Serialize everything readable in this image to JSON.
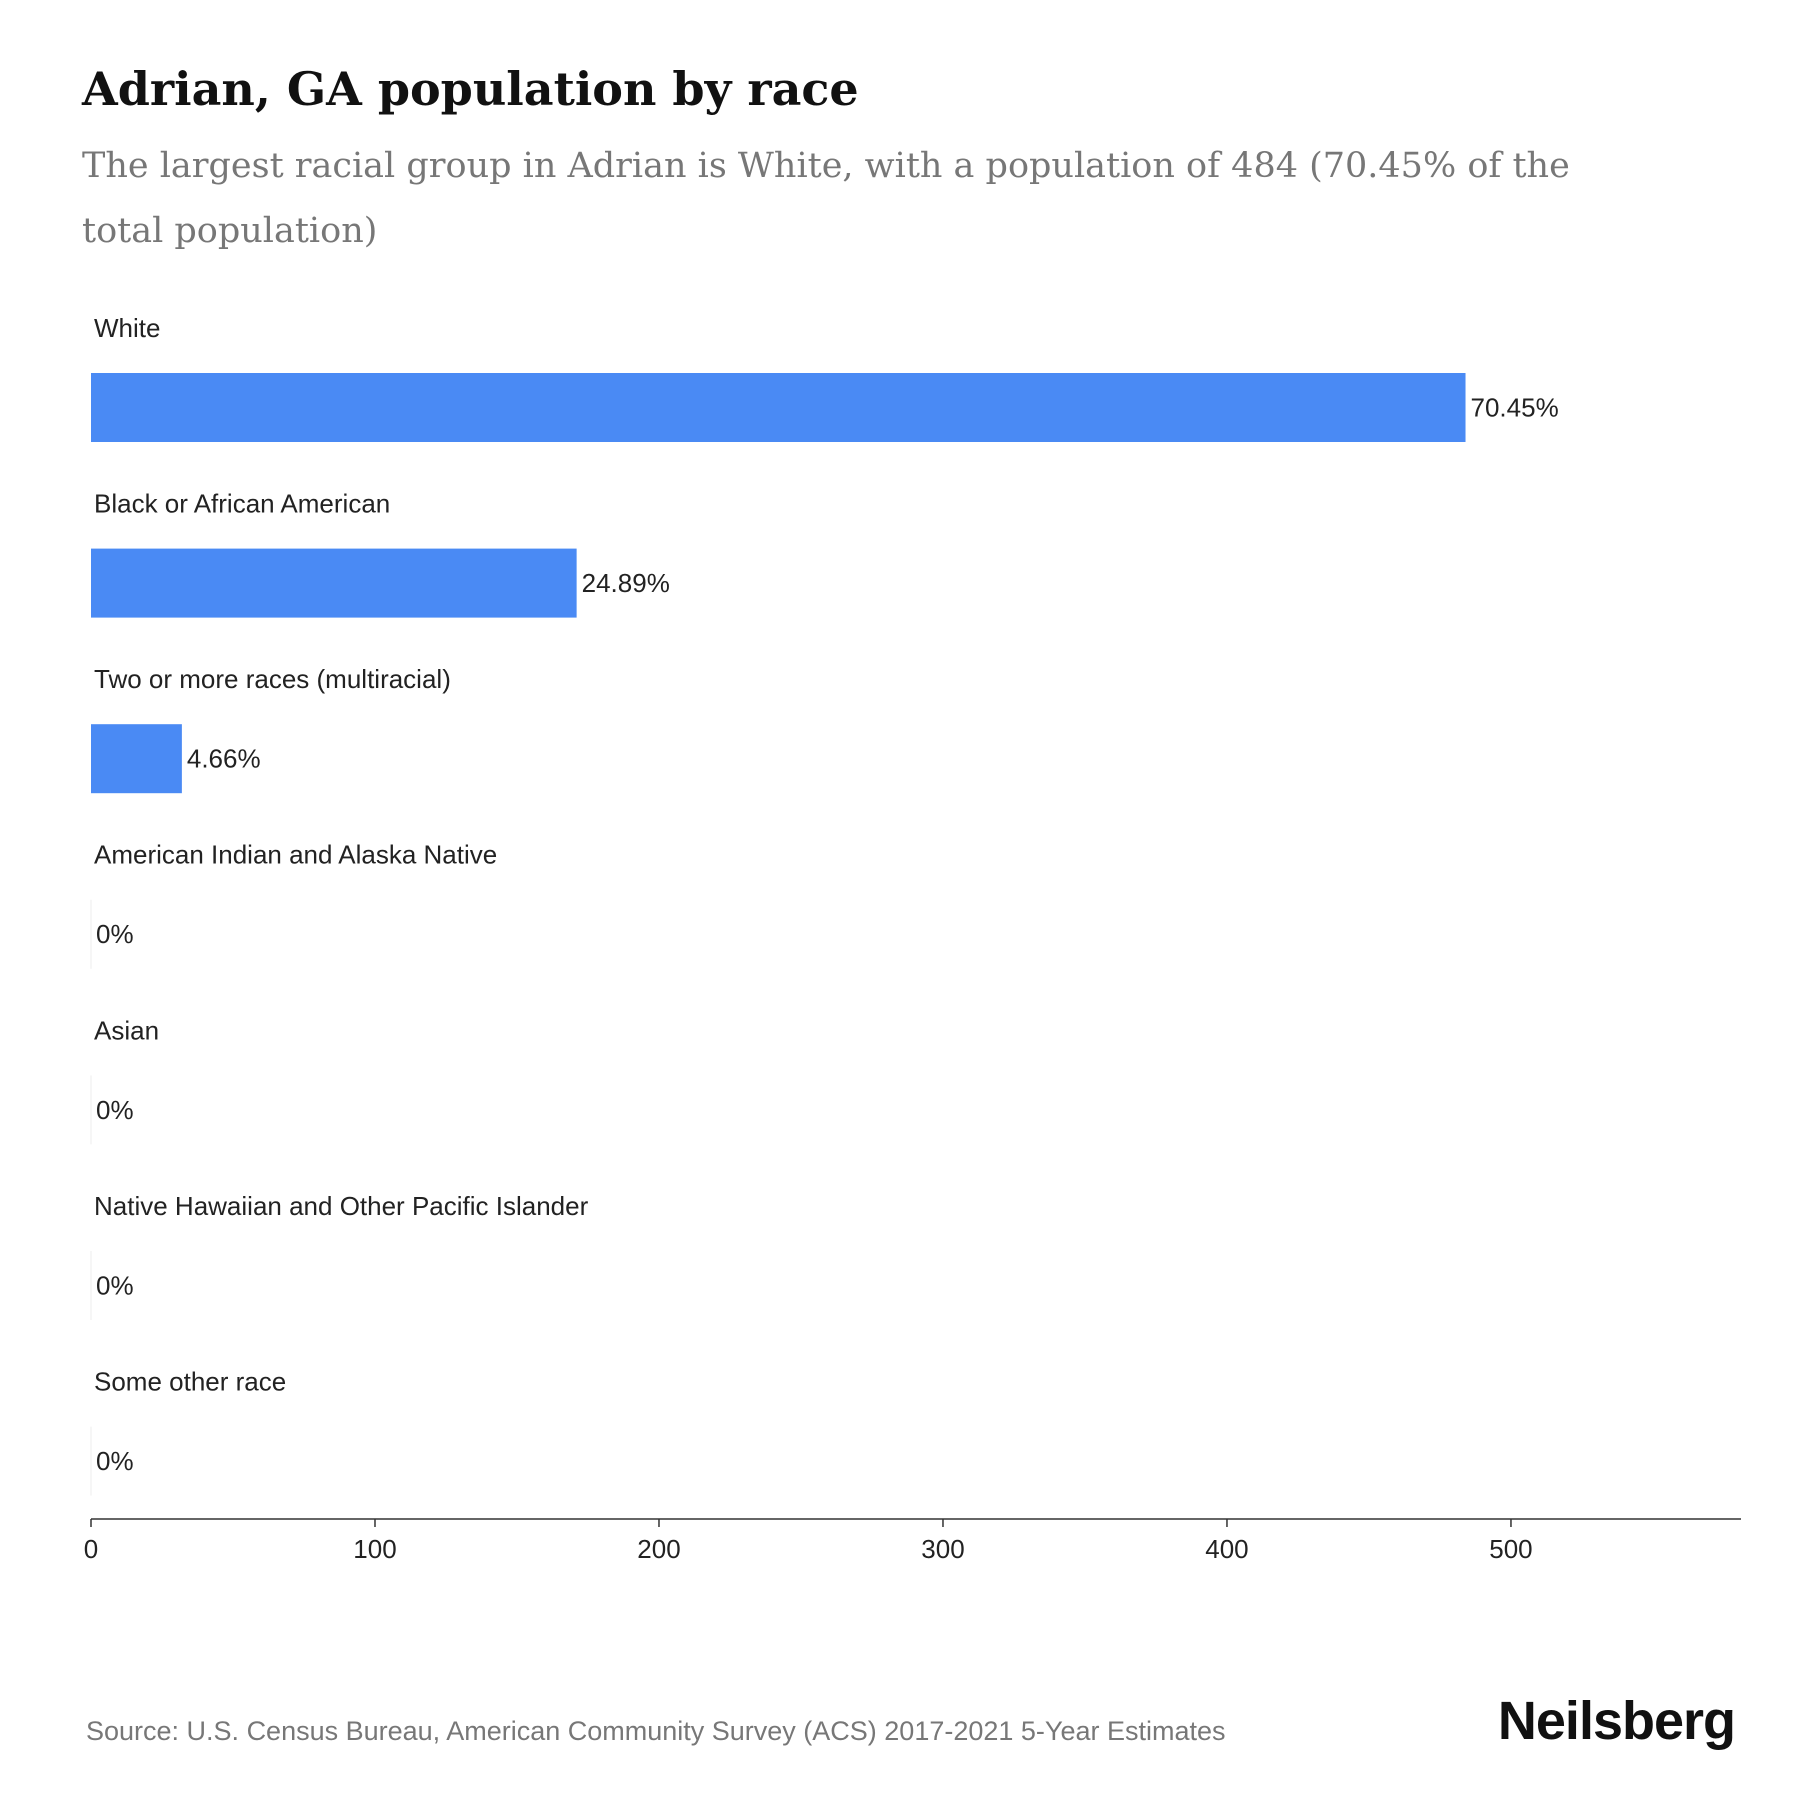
{
  "chart_data": {
    "type": "bar",
    "orientation": "horizontal",
    "title": "Adrian, GA population by race",
    "subtitle": "The largest racial group in Adrian is White, with a population of 484 (70.45% of the total population)",
    "categories": [
      "White",
      "Black or African American",
      "Two or more races (multiracial)",
      "American Indian and Alaska Native",
      "Asian",
      "Native Hawaiian and Other Pacific Islander",
      "Some other race"
    ],
    "values": [
      484,
      171,
      32,
      0,
      0,
      0,
      0
    ],
    "value_labels": [
      "70.45%",
      "24.89%",
      "4.66%",
      "0%",
      "0%",
      "0%",
      "0%"
    ],
    "color": "#4a8af4",
    "xlim": [
      0,
      581
    ],
    "xticks": [
      0,
      100,
      200,
      300,
      400,
      500
    ],
    "source": "Source: U.S. Census Bureau, American Community Survey (ACS) 2017-2021 5-Year Estimates",
    "brand": "Neilsberg"
  }
}
